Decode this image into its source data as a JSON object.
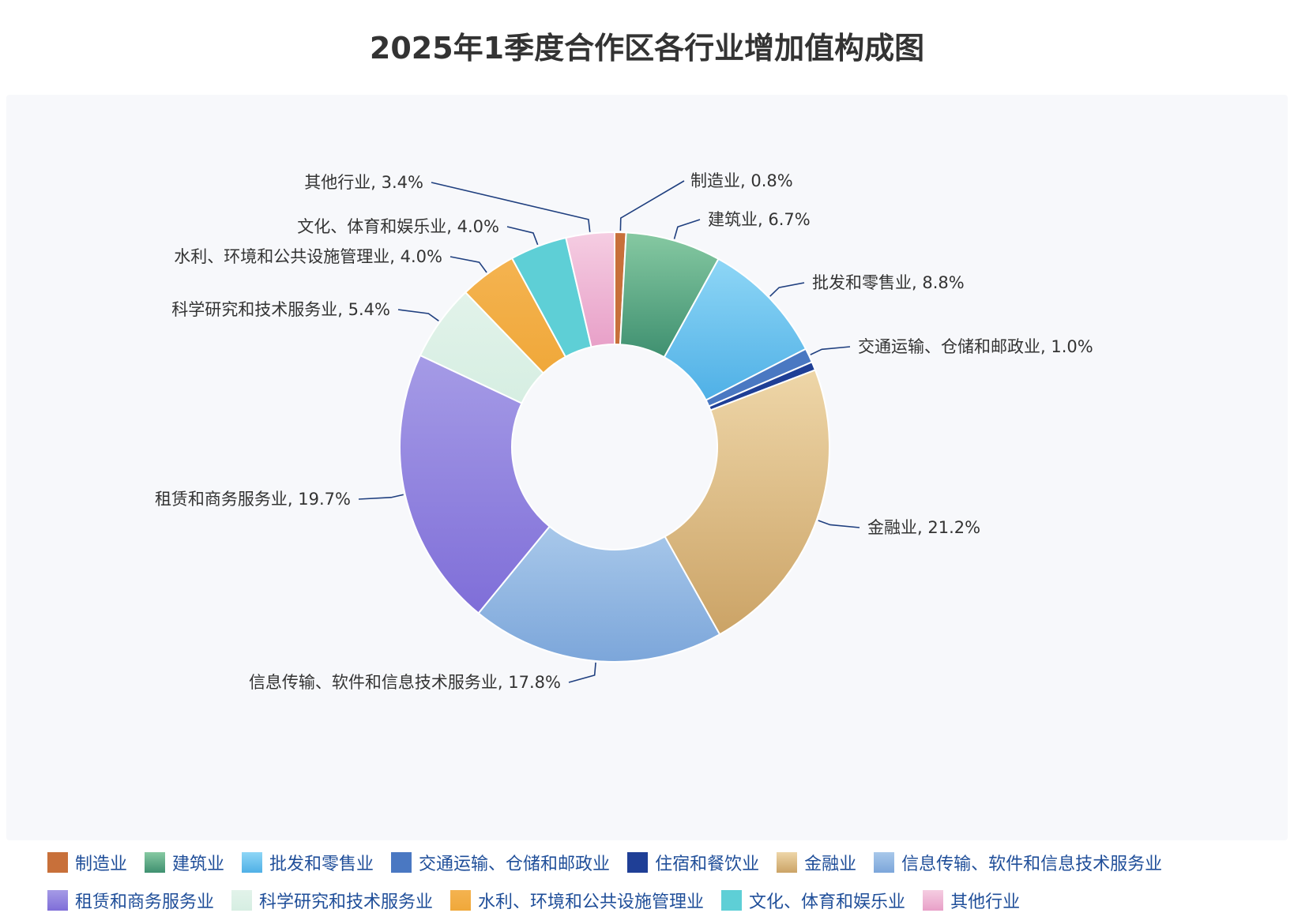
{
  "title": "2025年1季度合作区各行业增加值构成图",
  "chart_data": {
    "type": "pie",
    "variant": "donut",
    "title": "2025年1季度合作区各行业增加值构成图",
    "legend_position": "bottom",
    "slices": [
      {
        "name": "制造业",
        "value": 0.8,
        "label": "制造业, 0.8%",
        "color": "#c8703a",
        "color_light": "#c8703a"
      },
      {
        "name": "建筑业",
        "value": 6.7,
        "label": "建筑业, 6.7%",
        "color": "#3f9070",
        "color_light": "#86c9a2"
      },
      {
        "name": "批发和零售业",
        "value": 8.8,
        "label": "批发和零售业, 8.8%",
        "color": "#4fb0e6",
        "color_light": "#8ed6f6"
      },
      {
        "name": "交通运输、仓储和邮政业",
        "value": 1.0,
        "label": "交通运输、仓储和邮政业, 1.0%",
        "color": "#4a78c2",
        "color_light": "#4a78c2"
      },
      {
        "name": "住宿和餐饮业",
        "value": 0.6,
        "label": "",
        "color": "#1f3f96",
        "color_light": "#1f3f96"
      },
      {
        "name": "金融业",
        "value": 21.2,
        "label": "金融业, 21.2%",
        "color": "#cba366",
        "color_light": "#eed6a8"
      },
      {
        "name": "信息传输、软件和信息技术服务业",
        "value": 17.8,
        "label": "信息传输、软件和信息技术服务业, 17.8%",
        "color": "#7ca6da",
        "color_light": "#a8c8ea"
      },
      {
        "name": "租赁和商务服务业",
        "value": 19.7,
        "label": "租赁和商务服务业, 19.7%",
        "color": "#7f6ed8",
        "color_light": "#a59be6"
      },
      {
        "name": "科学研究和技术服务业",
        "value": 5.4,
        "label": "科学研究和技术服务业, 5.4%",
        "color": "#d6eee2",
        "color_light": "#e2f3ea"
      },
      {
        "name": "水利、环境和公共设施管理业",
        "value": 4.0,
        "label": "水利、环境和公共设施管理业, 4.0%",
        "color": "#f0a83a",
        "color_light": "#f4b350"
      },
      {
        "name": "文化、体育和娱乐业",
        "value": 4.0,
        "label": "文化、体育和娱乐业, 4.0%",
        "color": "#5ecfd6",
        "color_light": "#5ecfd6"
      },
      {
        "name": "其他行业",
        "value": 3.4,
        "label": "其他行业, 3.4%",
        "color": "#e8a0c8",
        "color_light": "#f5cde2"
      }
    ]
  }
}
